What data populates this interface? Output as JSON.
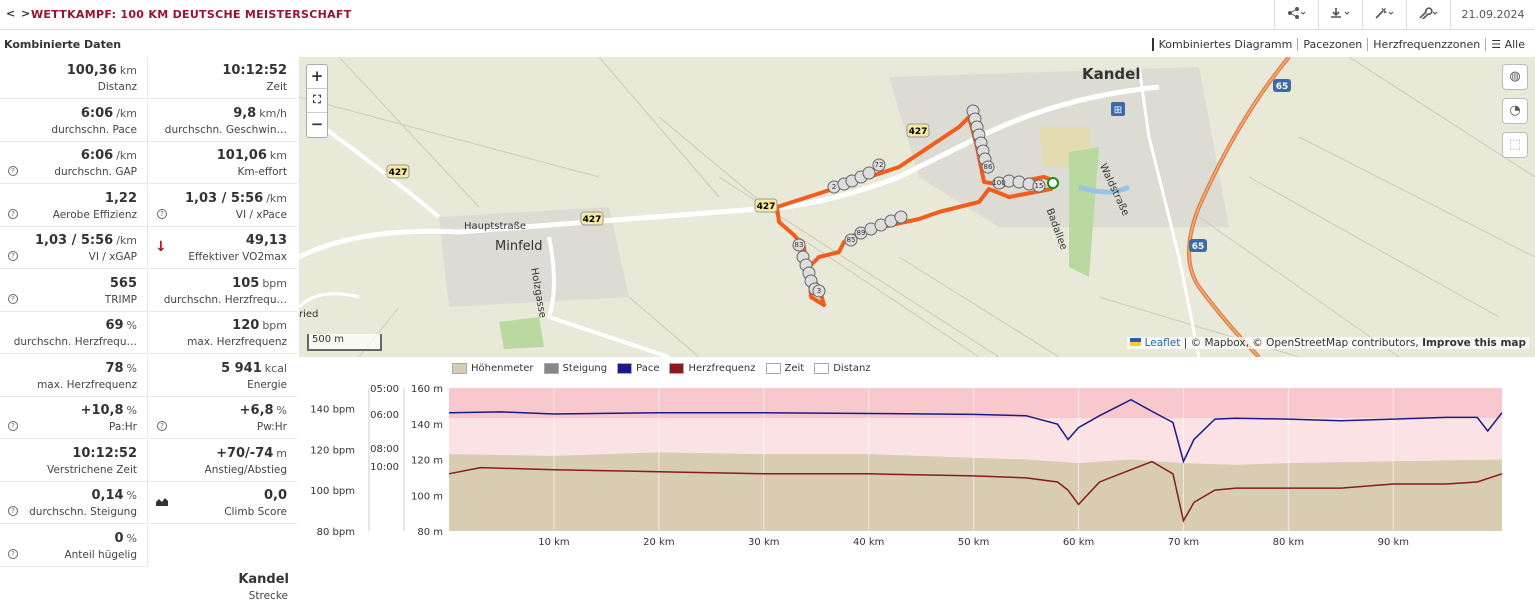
{
  "header": {
    "nav": "< >",
    "title": "WETTKAMPF: 100 KM DEUTSCHE MEISTERSCHAFT",
    "date": "21.09.2024",
    "toolbar": [
      {
        "icon": "share-icon"
      },
      {
        "icon": "download-icon"
      },
      {
        "icon": "magic-icon"
      },
      {
        "icon": "wrench-icon"
      }
    ]
  },
  "panel": {
    "title": "Kombinierte Daten"
  },
  "views": [
    "Kombiniertes Diagramm",
    "Pacezonen",
    "Herzfrequenzzonen",
    "Alle"
  ],
  "stats": [
    [
      {
        "value": "100,36",
        "unit": "km",
        "label": "Distanz"
      },
      {
        "value": "10:12:52",
        "unit": "",
        "label": "Zeit"
      }
    ],
    [
      {
        "value": "6:06",
        "unit": "/km",
        "label": "durchschn. Pace"
      },
      {
        "value": "9,8",
        "unit": "km/h",
        "label": "durchschn. Geschwin…"
      }
    ],
    [
      {
        "value": "6:06",
        "unit": "/km",
        "label": "durchschn. GAP",
        "help": true
      },
      {
        "value": "101,06",
        "unit": "km",
        "label": "Km-effort"
      }
    ],
    [
      {
        "value": "1,22",
        "unit": "",
        "label": "Aerobe Effizienz",
        "help": true
      },
      {
        "value": "1,03 / 5:56",
        "unit": "/km",
        "label": "VI / xPace",
        "help": true
      }
    ],
    [
      {
        "value": "1,03 / 5:56",
        "unit": "/km",
        "label": "VI / xGAP",
        "help": true
      },
      {
        "value": "49,13",
        "unit": "",
        "label": "Effektiver VO2max",
        "arrow": true
      }
    ],
    [
      {
        "value": "565",
        "unit": "",
        "label": "TRIMP",
        "help": true
      },
      {
        "value": "105",
        "unit": "bpm",
        "label": "durchschn. Herzfrequ…"
      }
    ],
    [
      {
        "value": "69",
        "unit": "%",
        "label": "durchschn. Herzfrequ…"
      },
      {
        "value": "120",
        "unit": "bpm",
        "label": "max. Herzfrequenz"
      }
    ],
    [
      {
        "value": "78",
        "unit": "%",
        "label": "max. Herzfrequenz"
      },
      {
        "value": "5 941",
        "unit": "kcal",
        "label": "Energie"
      }
    ],
    [
      {
        "value": "+10,8",
        "unit": "%",
        "label": "Pa:Hr",
        "help": true
      },
      {
        "value": "+6,8",
        "unit": "%",
        "label": "Pw:Hr",
        "help": true
      }
    ],
    [
      {
        "value": "10:12:52",
        "unit": "",
        "label": "Verstrichene Zeit"
      },
      {
        "value": "+70/-74",
        "unit": "m",
        "label": "Anstieg/Abstieg"
      }
    ],
    [
      {
        "value": "0,14",
        "unit": "%",
        "label": "durchschn. Steigung",
        "help": true
      },
      {
        "value": "0,0",
        "unit": "",
        "label": "Climb Score",
        "chart_icon": true
      }
    ],
    [
      {
        "value": "0",
        "unit": "%",
        "label": "Anteil hügelig",
        "help": true
      }
    ]
  ],
  "route": {
    "name": "Kandel",
    "label": "Strecke"
  },
  "map": {
    "zoom_in": "+",
    "fullscreen": "⛶",
    "zoom_out": "−",
    "scale": "500 m",
    "attribution_leaflet": "Leaflet",
    "attribution_rest": " | © Mapbox, © OpenStreetMap contributors, ",
    "attribution_improve": "Improve this map",
    "places": {
      "kandel": "Kandel",
      "minfeld": "Minfeld"
    },
    "streets": {
      "haupt": "Hauptstraße",
      "holz": "Holzgasse",
      "wald": "Waldstraße",
      "bad": "Badallee",
      "ried": "ried"
    },
    "road_shields": [
      "427",
      "427",
      "427",
      "427",
      "65",
      "65"
    ]
  },
  "chart_data": {
    "type": "area",
    "legend": [
      "Höhenmeter",
      "Steigung",
      "Pace",
      "Herzfrequenz",
      "Zeit",
      "Distanz"
    ],
    "x_unit": "km",
    "x_ticks": [
      10,
      20,
      30,
      40,
      50,
      60,
      70,
      80,
      90
    ],
    "xlim": [
      0,
      100.36
    ],
    "y_hr_ticks": [
      "140 bpm",
      "120 bpm",
      "100 bpm",
      "80 bpm"
    ],
    "y_hr_range": [
      80,
      150
    ],
    "y_pace_ticks": [
      "05:00",
      "06:00",
      "08:00",
      "10:00"
    ],
    "y_elev_ticks": [
      "160 m",
      "140 m",
      "120 m",
      "100 m",
      "80 m"
    ],
    "y_elev_range": [
      80,
      160
    ],
    "colors": {
      "elevation": "#d8ccb2",
      "pace": "#1a1a8c",
      "hr": "#8b1a1a",
      "hr_zone": "#f6b6bc"
    },
    "series": [
      {
        "name": "Höhenmeter",
        "x": [
          0,
          10,
          20,
          30,
          40,
          50,
          55,
          60,
          65,
          70,
          75,
          80,
          90,
          100.36
        ],
        "values": [
          123,
          122,
          124,
          123,
          123,
          121,
          120,
          118,
          120,
          118,
          117,
          118,
          119,
          120
        ]
      },
      {
        "name": "Pace",
        "x": [
          0,
          5,
          10,
          20,
          30,
          40,
          50,
          55,
          58,
          59,
          60,
          62,
          65,
          67,
          69,
          70,
          71,
          73,
          75,
          80,
          85,
          90,
          95,
          98,
          99,
          100.36
        ],
        "values": [
          5.95,
          5.92,
          6.0,
          5.95,
          5.95,
          5.98,
          6.02,
          6.1,
          6.6,
          7.5,
          6.8,
          6.1,
          5.45,
          5.9,
          6.5,
          9.5,
          7.5,
          6.3,
          6.25,
          6.3,
          6.4,
          6.3,
          6.2,
          6.2,
          7.0,
          5.95
        ]
      },
      {
        "name": "Herzfrequenz",
        "x": [
          0,
          3,
          10,
          20,
          30,
          40,
          50,
          55,
          58,
          59,
          60,
          62,
          65,
          67,
          69,
          70,
          71,
          73,
          75,
          80,
          85,
          90,
          95,
          98,
          100.36
        ],
        "values": [
          108,
          111,
          110,
          109,
          108,
          108,
          107,
          106,
          104,
          100,
          93,
          104,
          110,
          114,
          108,
          85,
          94,
          100,
          101,
          101,
          101,
          103,
          103,
          104,
          108
        ]
      }
    ]
  }
}
